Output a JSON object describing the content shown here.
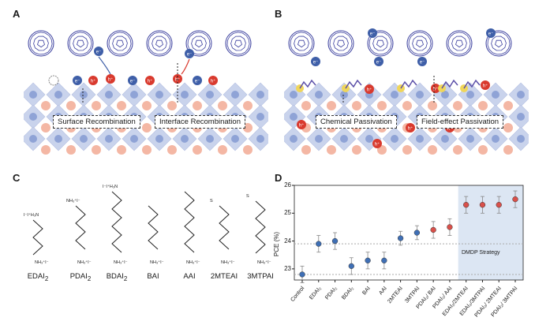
{
  "panels": {
    "A": {
      "letter": "A",
      "box_left": "Surface Recombination",
      "box_right": "Interface Recombination",
      "carrier_e": "e⁻",
      "carrier_h": "h⁺"
    },
    "B": {
      "letter": "B",
      "box_left": "Chemical Passivation",
      "box_right": "Field-effect Passivation",
      "carrier_e": "e⁻",
      "carrier_h": "h⁺"
    },
    "C": {
      "letter": "C",
      "molecules": [
        {
          "name": "EDAI",
          "sub": "2",
          "top_tag": "I⁻I⁺H₃N",
          "bot_tag": "NH₃⁺I⁻"
        },
        {
          "name": "PDAI",
          "sub": "2",
          "top_tag": "NH₃⁺I⁻",
          "bot_tag": "NH₃⁺I⁻"
        },
        {
          "name": "BDAI",
          "sub": "2",
          "top_tag": "I⁻I⁺H₃N",
          "bot_tag": "NH₃⁺I⁻"
        },
        {
          "name": "BAI",
          "sub": "",
          "top_tag": "",
          "bot_tag": "NH₃⁺I⁻"
        },
        {
          "name": "AAI",
          "sub": "",
          "top_tag": "",
          "bot_tag": "NH₃⁺I⁻"
        },
        {
          "name": "2MTEAI",
          "sub": "",
          "top_tag": "S",
          "bot_tag": "NH₃⁺I⁻"
        },
        {
          "name": "3MTPAI",
          "sub": "",
          "top_tag": "S",
          "bot_tag": "NH₃⁺I⁻"
        }
      ]
    },
    "D": {
      "letter": "D",
      "strategy_label": "DMDP Strategy"
    }
  },
  "colors": {
    "blue_marker": "#3f6fb5",
    "red_marker": "#d9504a",
    "strategy_bg": "#dce6f3",
    "fullerene": "#3a3f9e",
    "octahedron": "#c9d3ec",
    "a_site": "#f4b7a4",
    "b_site": "#8fa3d6"
  },
  "chart_data": {
    "type": "scatter",
    "title": "",
    "xlabel": "",
    "ylabel": "PCE (%)",
    "ylim": [
      22.6,
      26.0
    ],
    "yticks": [
      "23",
      "24",
      "25",
      "26"
    ],
    "grid": "horizontal dashed at 22.8 and 23.9",
    "categories": [
      "Control",
      "EDAI₂",
      "PDAI₂",
      "BDAI₂",
      "BAI",
      "AAI",
      "2MTEAI",
      "3MTPAI",
      "PDAI₂/ BAI",
      "PDAI₂/ AAI",
      "EDAI₂/2MTEAI",
      "EDAI₂/3MTPAI",
      "PDAI₂/ 2MTEAI",
      "PDAI₂/ 3MTPAI"
    ],
    "series": [
      {
        "values": [
          22.8,
          23.9,
          24.0,
          23.1,
          23.3,
          23.3,
          24.1,
          24.3,
          24.4,
          24.5,
          25.3,
          25.3,
          25.3,
          25.5
        ],
        "errors": [
          0.3,
          0.3,
          0.3,
          0.3,
          0.3,
          0.3,
          0.25,
          0.25,
          0.3,
          0.3,
          0.3,
          0.3,
          0.3,
          0.3
        ]
      }
    ]
  }
}
